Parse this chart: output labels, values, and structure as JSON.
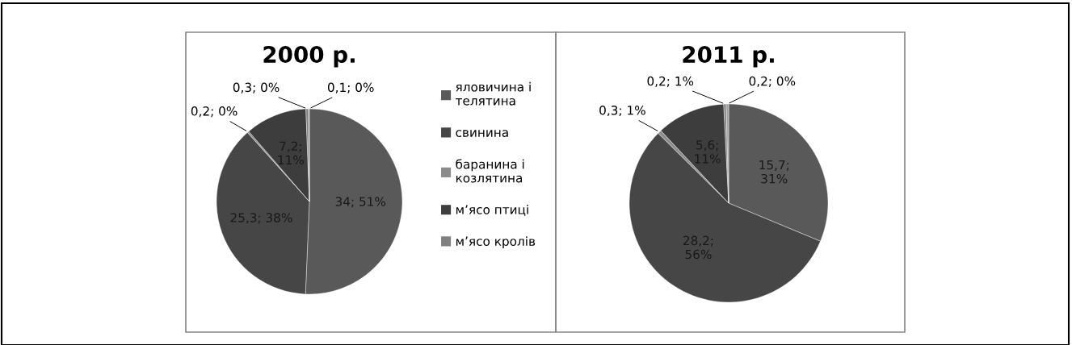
{
  "chart_data": [
    {
      "type": "pie",
      "title": "2000 р.",
      "categories": [
        "яловичина і телятина",
        "свинина",
        "баранина і козлятина",
        "м’ясо птиці",
        "м’ясо кролів",
        null
      ],
      "values": [
        34,
        25.3,
        0.2,
        7.2,
        0.3,
        0.1
      ],
      "value_labels": [
        "34; 51%",
        "25,3; 38%",
        "0,2; 0%",
        "7,2;\n11%",
        "0,3; 0%",
        "0,1; 0%"
      ],
      "colors": [
        "#595959",
        "#464646",
        "#8c8c8c",
        "#3d3d3d",
        "#808080",
        "#a0a0a0"
      ],
      "legend": "right"
    },
    {
      "type": "pie",
      "title": "2011 р.",
      "categories": [
        null,
        null,
        null,
        null,
        null,
        null
      ],
      "values": [
        15.7,
        28.2,
        0.3,
        5.6,
        0.2,
        0.2
      ],
      "value_labels": [
        "15,7;\n31%",
        "28,2;\n56%",
        "0,3; 1%",
        "5,6;\n11%",
        "0,2; 1%",
        "0,2; 0%"
      ],
      "colors": [
        "#595959",
        "#464646",
        "#8c8c8c",
        "#3d3d3d",
        "#808080",
        "#a0a0a0"
      ],
      "legend": false
    }
  ]
}
